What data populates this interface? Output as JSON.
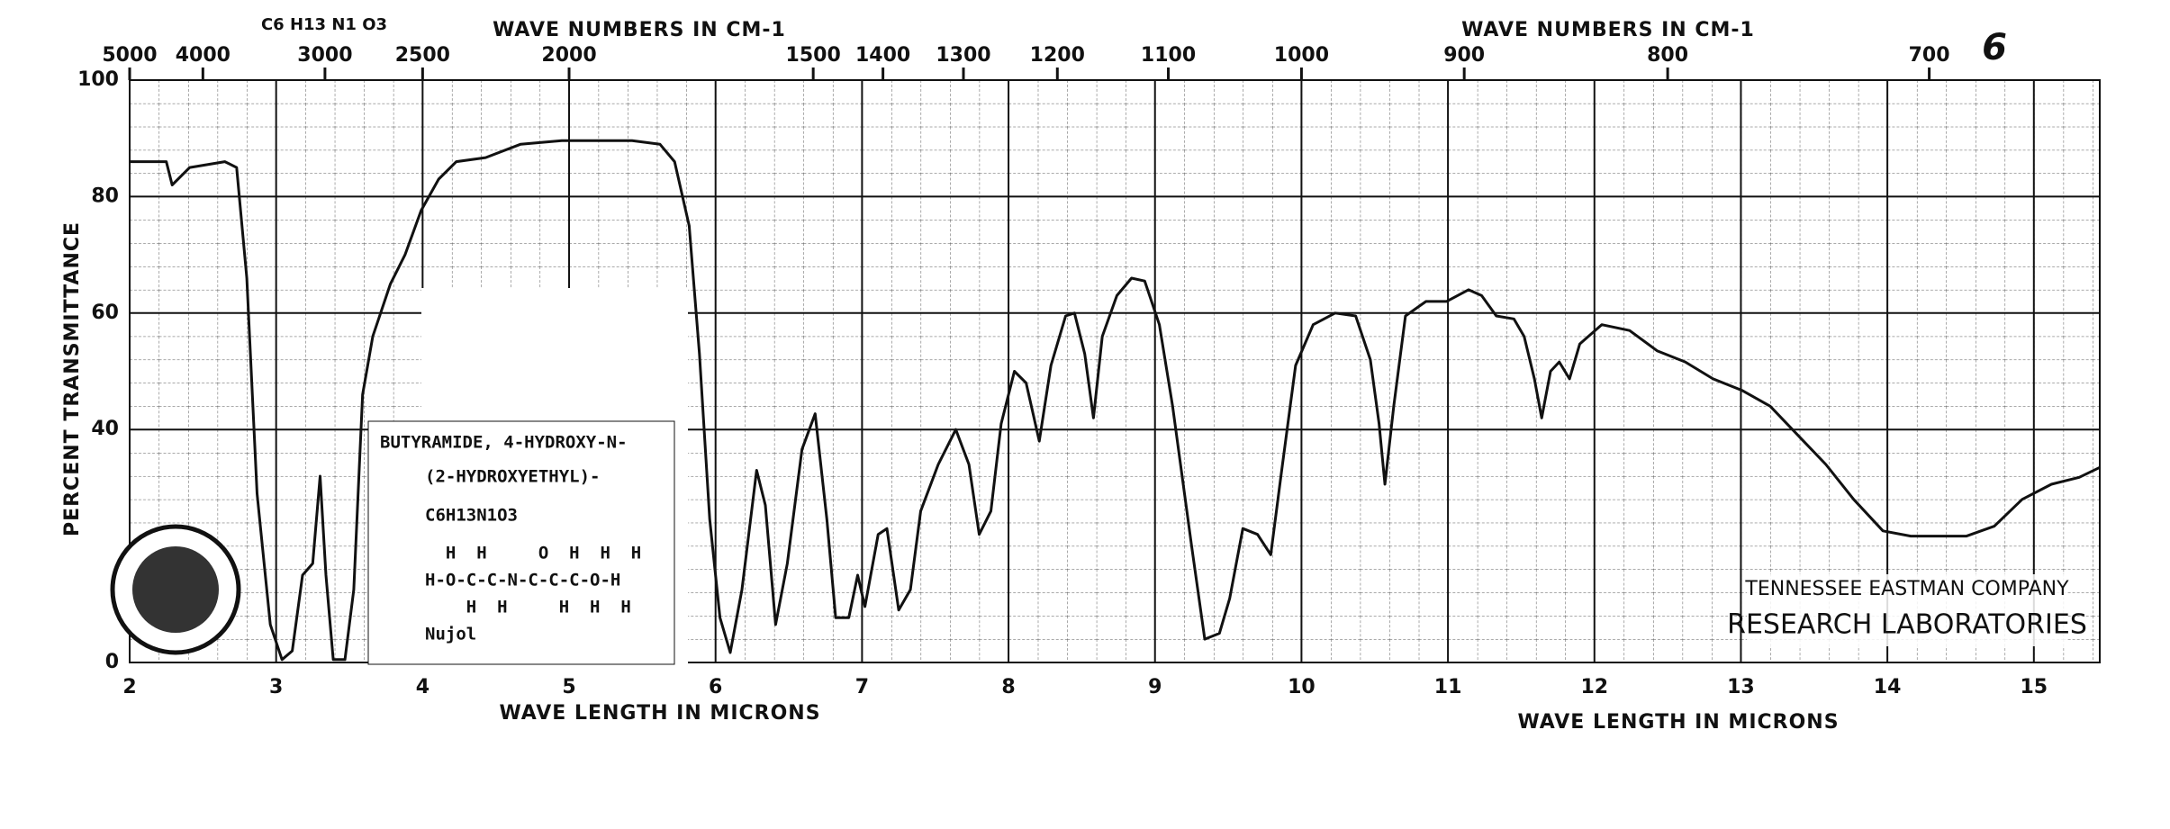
{
  "chart_data": {
    "type": "line",
    "page_number": "6",
    "formula_top": "C6 H13 N1 O3",
    "top_axis_label": "WAVE NUMBERS IN CM-1",
    "top_axis_label_right": "WAVE NUMBERS IN CM-1",
    "x_axis_label": "WAVE LENGTH IN MICRONS",
    "x_axis_label_right": "WAVE LENGTH IN MICRONS",
    "y_axis_label": "PERCENT TRANSMITTANCE",
    "compound": {
      "name_line1": "BUTYRAMIDE, 4-HYDROXY-N-",
      "name_line2": "(2-HYDROXYETHYL)-",
      "formula": "C6H13N1O3",
      "structure_top": "  H  H     O  H  H  H",
      "structure_main": "H-O-C-C-N-C-C-C-O-H",
      "structure_bottom": "    H  H     H  H  H",
      "medium": "Nujol"
    },
    "company": "TENNESSEE EASTMAN COMPANY",
    "laboratory": "RESEARCH LABORATORIES",
    "xlim": [
      2,
      15.45
    ],
    "ylim": [
      0,
      100
    ],
    "xticks": [
      2,
      3,
      4,
      5,
      6,
      7,
      8,
      9,
      10,
      11,
      12,
      13,
      14,
      15
    ],
    "yticks": [
      0,
      40,
      60,
      80,
      100
    ],
    "x2ticks": [
      5000,
      4000,
      3000,
      2500,
      2000,
      1500,
      1400,
      1300,
      1200,
      1100,
      1000,
      900,
      800,
      700
    ],
    "grid": true,
    "series": [
      {
        "name": "Butyramide, 4-hydroxy-N-(2-hydroxyethyl)-",
        "color": "#111111",
        "x": [
          2.0,
          2.25,
          2.29,
          2.41,
          2.65,
          2.73,
          2.8,
          2.87,
          2.96,
          3.04,
          3.11,
          3.18,
          3.25,
          3.3,
          3.34,
          3.39,
          3.47,
          3.53,
          3.59,
          3.66,
          3.78,
          3.88,
          3.99,
          4.11,
          4.23,
          4.43,
          4.67,
          4.95,
          5.14,
          5.43,
          5.62,
          5.72,
          5.82,
          5.89,
          5.96,
          6.03,
          6.1,
          6.18,
          6.28,
          6.34,
          6.41,
          6.49,
          6.59,
          6.68,
          6.76,
          6.82,
          6.91,
          6.97,
          7.02,
          7.11,
          7.17,
          7.25,
          7.33,
          7.4,
          7.52,
          7.64,
          7.73,
          7.8,
          7.88,
          7.95,
          8.04,
          8.12,
          8.21,
          8.29,
          8.39,
          8.45,
          8.52,
          8.58,
          8.64,
          8.74,
          8.84,
          8.93,
          9.03,
          9.12,
          9.25,
          9.34,
          9.44,
          9.51,
          9.6,
          9.7,
          9.79,
          9.86,
          9.96,
          10.08,
          10.23,
          10.37,
          10.47,
          10.53,
          10.57,
          10.63,
          10.71,
          10.85,
          10.99,
          11.14,
          11.23,
          11.33,
          11.45,
          11.52,
          11.59,
          11.64,
          11.7,
          11.76,
          11.83,
          11.9,
          12.05,
          12.24,
          12.43,
          12.62,
          12.81,
          13.01,
          13.2,
          13.39,
          13.58,
          13.77,
          13.97,
          14.16,
          14.35,
          14.54,
          14.73,
          14.92,
          15.12,
          15.31,
          15.45
        ],
        "values": [
          86,
          86,
          82,
          85,
          86,
          85,
          66,
          29,
          6.5,
          0.5,
          2,
          15,
          17,
          32,
          15,
          0.5,
          0.5,
          12.5,
          46,
          56,
          65,
          70,
          77.6,
          83,
          86,
          86.7,
          89,
          89.6,
          89.6,
          89.6,
          89,
          86,
          75,
          53,
          24.6,
          7.7,
          1.7,
          12.5,
          33,
          27,
          6.5,
          17,
          36.6,
          42.7,
          24.6,
          7.7,
          7.7,
          15,
          9.6,
          22,
          23,
          9,
          12.5,
          26,
          34,
          40,
          34,
          22,
          26,
          41,
          50,
          48,
          38,
          51,
          59.5,
          60,
          53,
          42,
          56,
          63,
          66,
          65.5,
          58,
          44,
          20,
          4,
          5,
          11,
          23,
          22,
          18.5,
          32,
          51,
          58,
          60,
          59.5,
          52,
          41,
          30.6,
          44,
          59.5,
          62,
          62,
          64,
          63,
          59.5,
          59,
          56,
          48.7,
          42,
          50,
          51.6,
          48.7,
          54.7,
          58,
          57,
          53.5,
          51.6,
          48.7,
          46.7,
          44,
          39,
          34,
          28,
          22.6,
          21.7,
          21.7,
          21.7,
          23.4,
          28,
          30.6,
          31.8,
          33.5
        ]
      }
    ]
  }
}
